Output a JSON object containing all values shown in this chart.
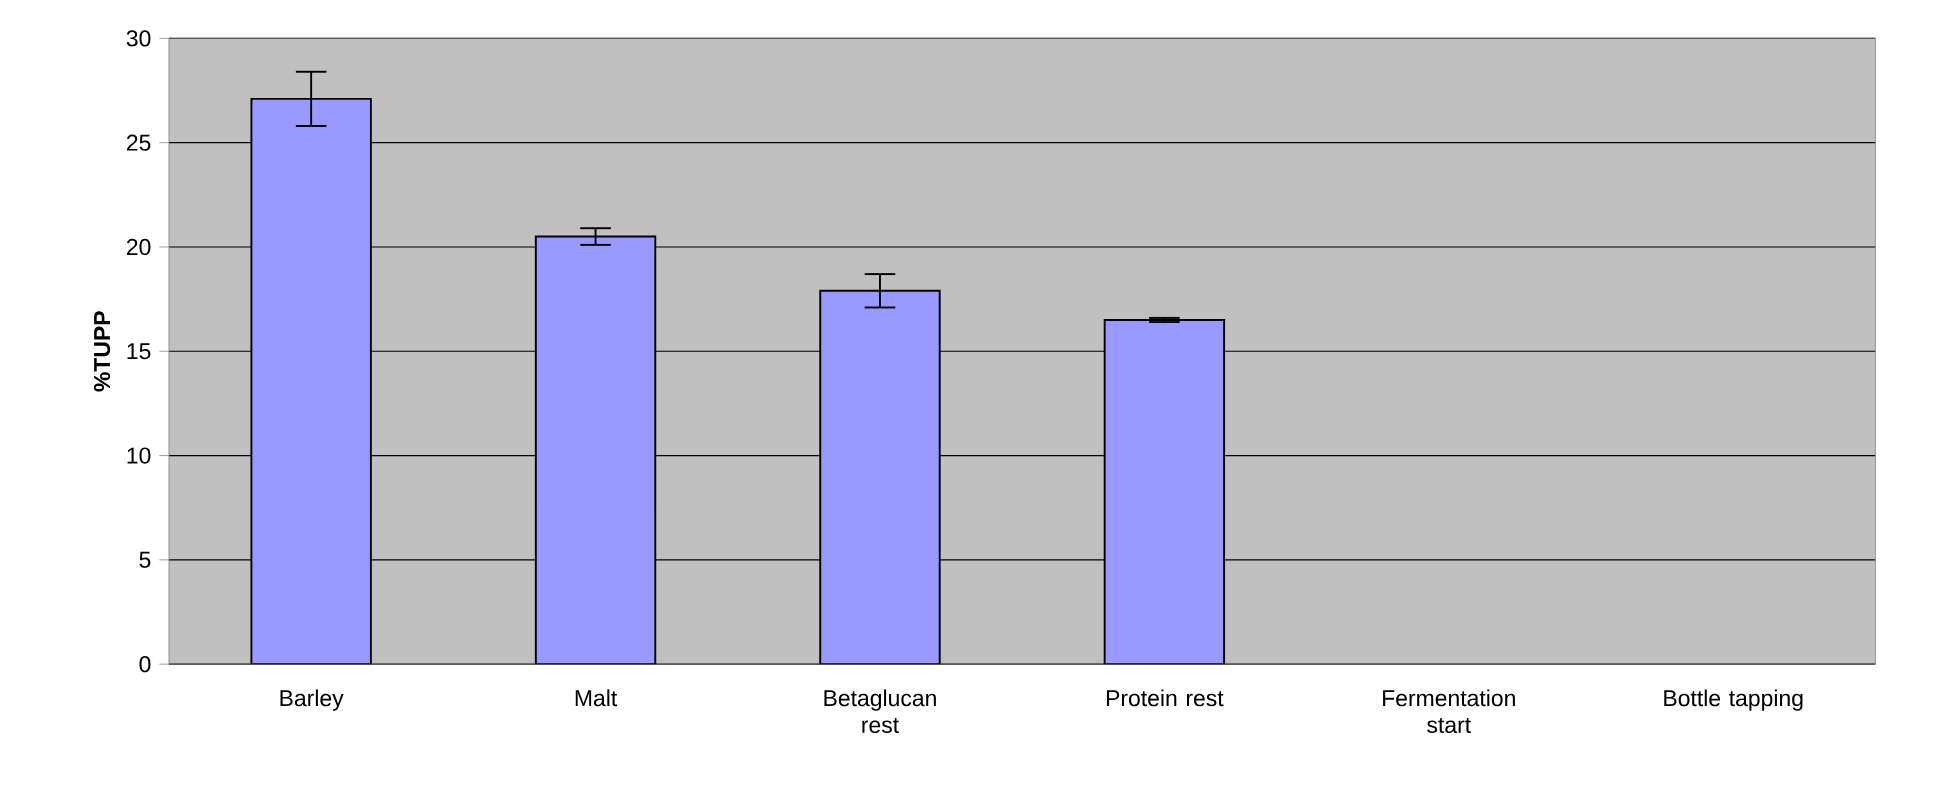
{
  "chart_data": {
    "type": "bar",
    "ylabel": "%TUPP",
    "categories": [
      "Barley",
      "Malt",
      "Betaglucan rest",
      "Protein rest",
      "Fermentation start",
      "Bottle tapping"
    ],
    "values": [
      27.1,
      20.5,
      17.9,
      16.5,
      null,
      null
    ],
    "errors": [
      1.3,
      0.4,
      0.8,
      0.1,
      null,
      null
    ],
    "color": "#9999ff",
    "ylim": [
      0,
      30
    ],
    "yticks": [
      0,
      5,
      10,
      15,
      20,
      25,
      30
    ],
    "grid": "y",
    "legend": false
  }
}
